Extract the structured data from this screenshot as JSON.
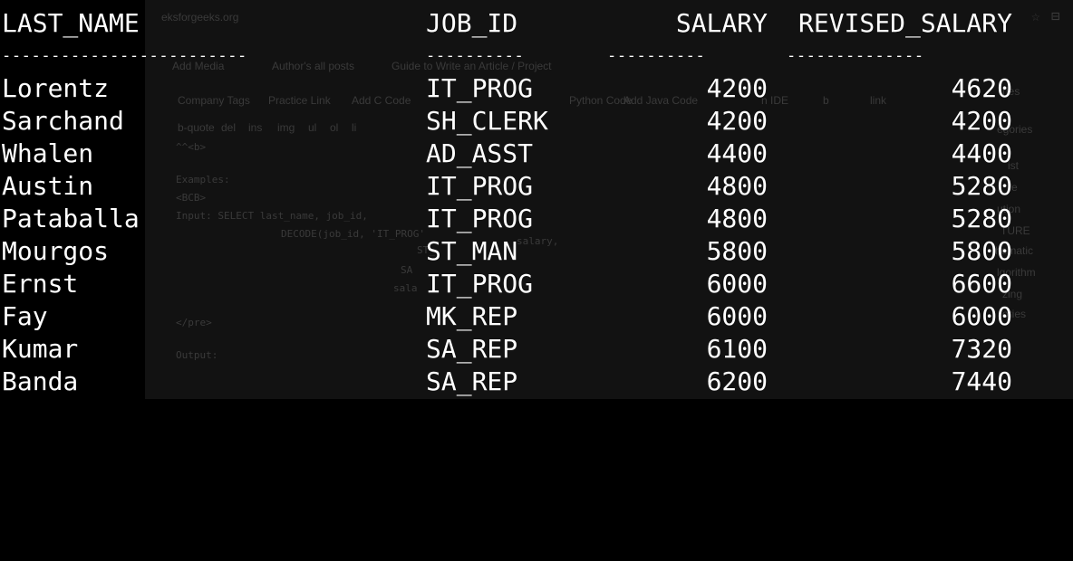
{
  "background_page": {
    "url_fragment": "eksforgeeks.org",
    "toolbar_items": [
      "Add Media",
      "Author's all posts",
      "Guide to Write an Article / Project"
    ],
    "format_buttons": [
      "Company Tags",
      "Practice Link",
      "Add C Code",
      "Python Code",
      "Add Java Code",
      "n IDE",
      "b",
      "link"
    ],
    "quicktags": [
      "b-quote",
      "del",
      "ins",
      "img",
      "ul",
      "ol",
      "li"
    ],
    "editor_lines": [
      "^^<b>",
      "Examples:",
      "<BCB>",
      "Input: SELECT last_name, job_id,",
      "DECODE(job_id, 'IT_PROG'",
      "salary,",
      "ST_",
      "SA",
      "sala",
      "</pre>",
      "Output:"
    ],
    "sidebar_items": [
      "ries",
      "egories",
      "ist",
      "e",
      "ution",
      "TURE",
      "hematic",
      "lgorithm",
      "zing",
      "ories"
    ]
  },
  "terminal": {
    "headers": {
      "last_name": "LAST_NAME",
      "job_id": "JOB_ID",
      "salary": "SALARY",
      "revised_salary": "REVISED_SALARY"
    },
    "separators": {
      "last_name": "-------------------------",
      "job_id": "----------",
      "salary": "----------",
      "revised_salary": "--------------"
    },
    "rows": [
      {
        "last_name": "Lorentz",
        "job_id": "IT_PROG",
        "salary": "4200",
        "revised_salary": "4620"
      },
      {
        "last_name": "Sarchand",
        "job_id": "SH_CLERK",
        "salary": "4200",
        "revised_salary": "4200"
      },
      {
        "last_name": "Whalen",
        "job_id": "AD_ASST",
        "salary": "4400",
        "revised_salary": "4400"
      },
      {
        "last_name": "Austin",
        "job_id": "IT_PROG",
        "salary": "4800",
        "revised_salary": "5280"
      },
      {
        "last_name": "Pataballa",
        "job_id": "IT_PROG",
        "salary": "4800",
        "revised_salary": "5280"
      },
      {
        "last_name": "Mourgos",
        "job_id": "ST_MAN",
        "salary": "5800",
        "revised_salary": "5800"
      },
      {
        "last_name": "Ernst",
        "job_id": "IT_PROG",
        "salary": "6000",
        "revised_salary": "6600"
      },
      {
        "last_name": "Fay",
        "job_id": "MK_REP",
        "salary": "6000",
        "revised_salary": "6000"
      },
      {
        "last_name": "Kumar",
        "job_id": "SA_REP",
        "salary": "6100",
        "revised_salary": "7320"
      },
      {
        "last_name": "Banda",
        "job_id": "SA_REP",
        "salary": "6200",
        "revised_salary": "7440"
      }
    ],
    "colors": {
      "background": "#000000",
      "text": "#ffffff"
    }
  }
}
